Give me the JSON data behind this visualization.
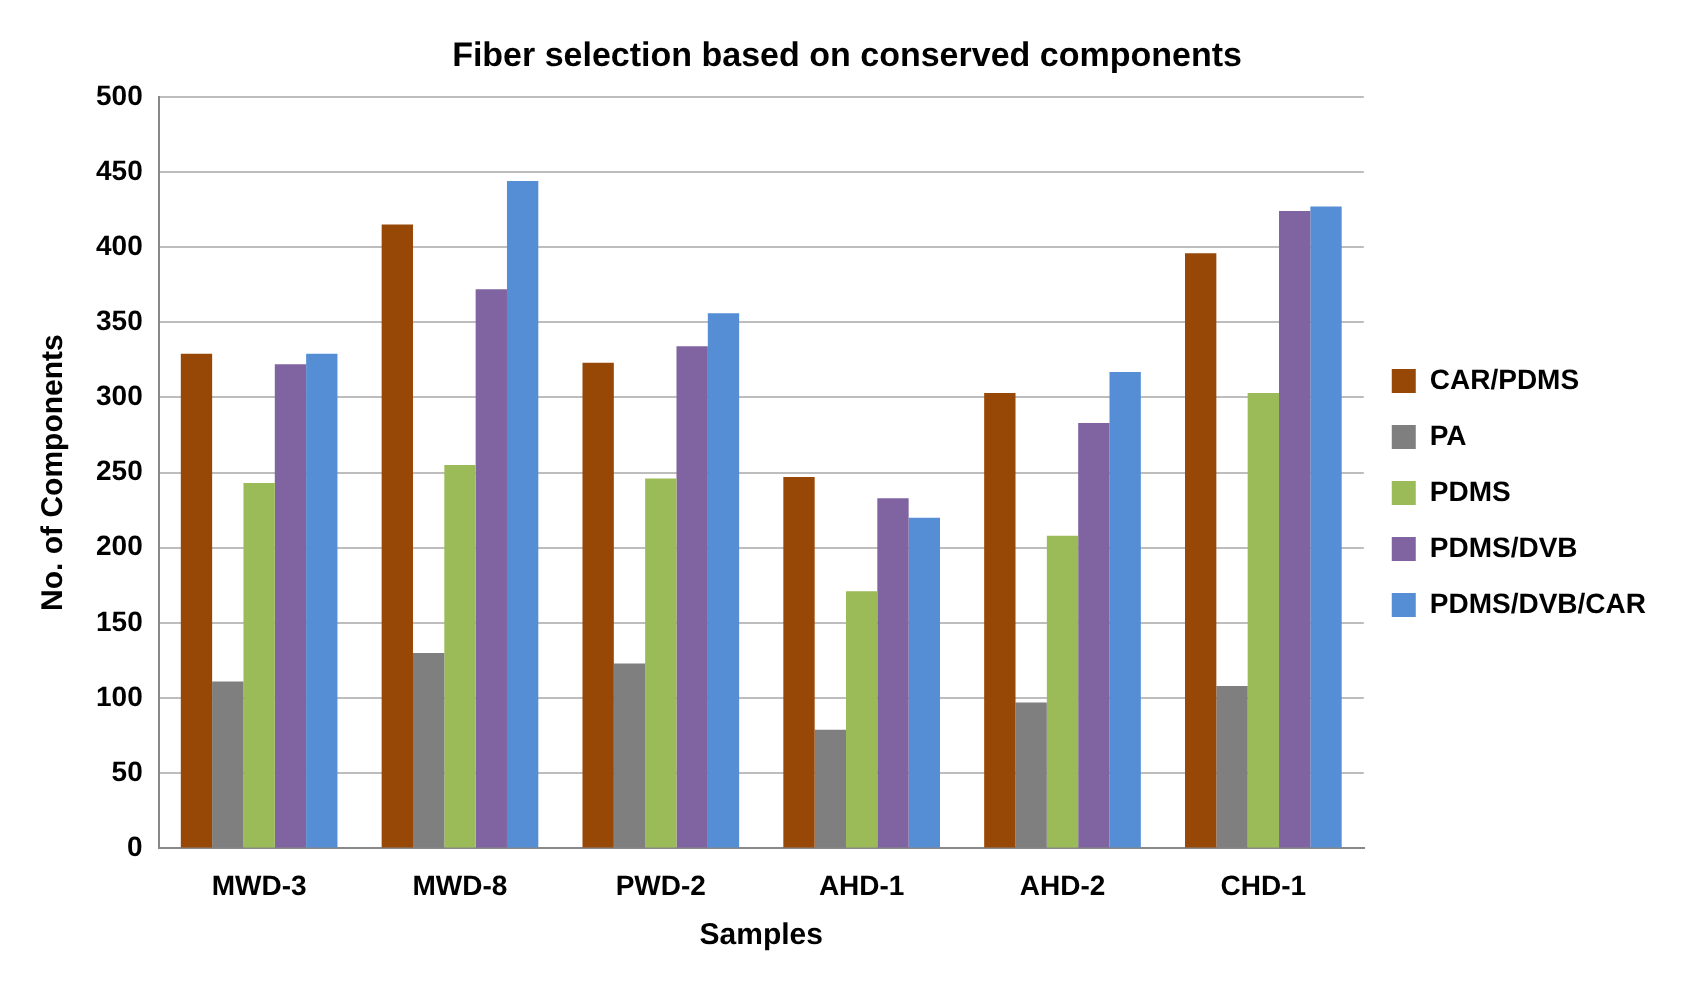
{
  "chart_data": {
    "type": "bar",
    "title": "Fiber selection based on conserved components",
    "xlabel": "Samples",
    "ylabel": "No. of Components",
    "categories": [
      "MWD-3",
      "MWD-8",
      "PWD-2",
      "AHD-1",
      "AHD-2",
      "CHD-1"
    ],
    "series": [
      {
        "name": "CAR/PDMS",
        "color": "#974706",
        "values": [
          329,
          415,
          323,
          247,
          303,
          396
        ]
      },
      {
        "name": "PA",
        "color": "#7f7f7f",
        "values": [
          111,
          130,
          123,
          79,
          97,
          108
        ]
      },
      {
        "name": "PDMS",
        "color": "#9bbb59",
        "values": [
          243,
          255,
          246,
          171,
          208,
          303
        ]
      },
      {
        "name": "PDMS/DVB",
        "color": "#8064a2",
        "values": [
          322,
          372,
          334,
          233,
          283,
          424
        ]
      },
      {
        "name": "PDMS/DVB/CAR",
        "color": "#558ed5",
        "values": [
          329,
          444,
          356,
          220,
          317,
          427
        ]
      }
    ],
    "ylim": [
      0,
      500
    ],
    "yticks": [
      0,
      50,
      100,
      150,
      200,
      250,
      300,
      350,
      400,
      450,
      500
    ],
    "grid": "y",
    "legend": "right"
  }
}
